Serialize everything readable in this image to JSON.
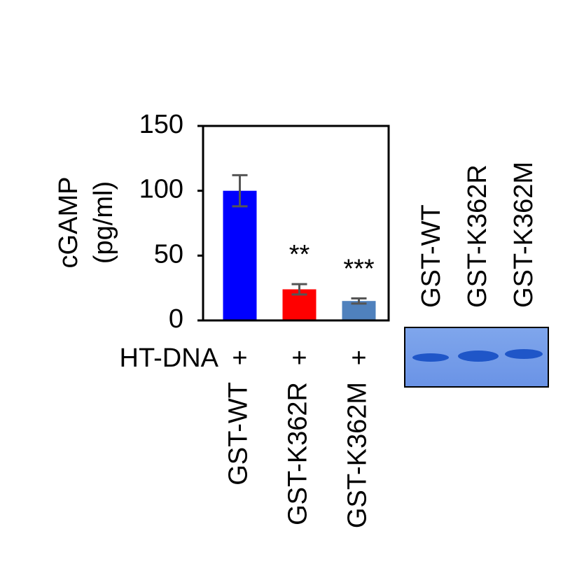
{
  "chart_data": {
    "type": "bar",
    "y_label": [
      "cGAMP",
      "(pg/ml)"
    ],
    "categories": [
      "GST-WT",
      "GST-K362R",
      "GST-K362M"
    ],
    "values": [
      100,
      24,
      15
    ],
    "errors": [
      12,
      4,
      2
    ],
    "colors": [
      "#0000ff",
      "#ff0000",
      "#4f81bd"
    ],
    "error_color": "#555555",
    "significance": [
      null,
      "**",
      "***"
    ],
    "ylim": [
      0,
      150
    ],
    "yticks": [
      0,
      50,
      100,
      150
    ],
    "treatment": {
      "label": "HT-DNA",
      "marks": [
        "+",
        "+",
        "+"
      ]
    }
  },
  "blot": {
    "lanes": [
      "GST-WT",
      "GST-K362R",
      "GST-K362M"
    ]
  }
}
